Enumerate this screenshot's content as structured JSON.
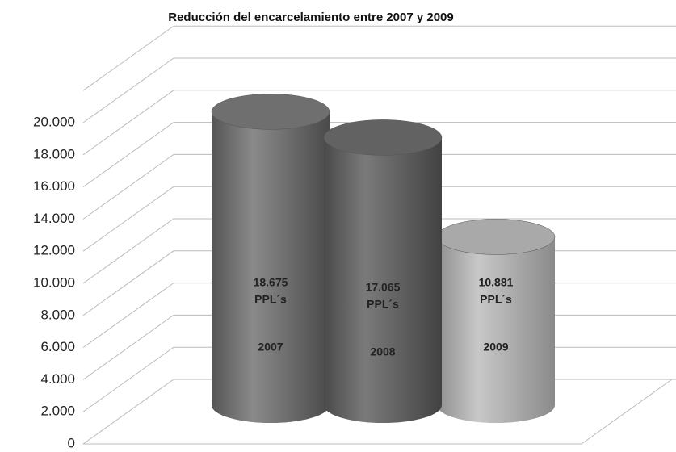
{
  "chart_data": {
    "type": "bar",
    "title": "Reducción del encarcelamiento entre 2007 y 2009",
    "categories": [
      "2007",
      "2008",
      "2009"
    ],
    "values": [
      18675,
      17065,
      10881
    ],
    "value_labels": [
      "18.675",
      "17.065",
      "10.881"
    ],
    "unit_label": "PPL´s",
    "colors": [
      "#6f6f6f",
      "#626262",
      "#a9a9a9"
    ],
    "ylim": [
      0,
      22000
    ],
    "yticks": [
      0,
      {
        "value": 2000,
        "label": "2.000"
      },
      {
        "value": 4000,
        "label": "4.000"
      },
      {
        "value": 6000,
        "label": "6.000"
      },
      {
        "value": 8000,
        "label": "8.000"
      },
      {
        "value": 10000,
        "label": "10.000"
      },
      {
        "value": 12000,
        "label": "12.000"
      },
      {
        "value": 14000,
        "label": "14.000"
      },
      {
        "value": 16000,
        "label": "16.000"
      },
      {
        "value": 18000,
        "label": "18.000"
      },
      {
        "value": 20000,
        "label": "20.000"
      }
    ],
    "grid": true
  }
}
